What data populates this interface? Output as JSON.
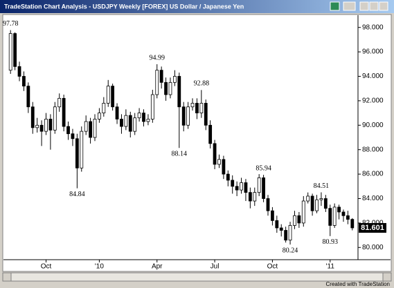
{
  "window": {
    "title": "TradeStation Chart Analysis - USDJPY Weekly [FOREX] US Dollar / Japanese Yen",
    "footer": "Created with TradeStation"
  },
  "chart_data": {
    "type": "candlestick",
    "categories": [
      null,
      null,
      null,
      null,
      null,
      null,
      null,
      null,
      "Oct",
      null,
      null,
      null,
      null,
      null,
      null,
      null,
      null,
      null,
      null,
      null,
      "'10",
      null,
      null,
      null,
      null,
      null,
      null,
      null,
      null,
      null,
      null,
      null,
      null,
      "Apr",
      null,
      null,
      null,
      null,
      null,
      null,
      null,
      null,
      null,
      null,
      null,
      null,
      "Jul",
      null,
      null,
      null,
      null,
      null,
      null,
      null,
      null,
      null,
      null,
      null,
      null,
      "Oct",
      null,
      null,
      null,
      null,
      null,
      null,
      null,
      null,
      null,
      null,
      null,
      null,
      "'11",
      null,
      null,
      null,
      null,
      null
    ],
    "series": [
      {
        "name": "USDJPY",
        "open": [
          94.5,
          97.5,
          94.8,
          94.0,
          93.2,
          91.5,
          89.8,
          90.0,
          89.5,
          90.5,
          89.6,
          91.5,
          92.2,
          89.9,
          89.3,
          88.9,
          86.5,
          89.5,
          90.3,
          89.0,
          90.5,
          91.0,
          91.8,
          93.2,
          91.5,
          90.5,
          89.9,
          90.8,
          89.5,
          90.6,
          91.0,
          90.3,
          90.5,
          92.5,
          94.5,
          93.5,
          92.5,
          93.5,
          94.0,
          91.5,
          90.0,
          91.5,
          91.8,
          91.0,
          91.8,
          90.0,
          88.5,
          86.8,
          87.2,
          86.0,
          85.5,
          85.0,
          84.7,
          85.3,
          84.5,
          83.8,
          84.5,
          85.7,
          84.0,
          83.0,
          82.2,
          81.6,
          81.4,
          80.6,
          81.8,
          82.6,
          82.0,
          83.8,
          84.2,
          83.0,
          83.9,
          84.0,
          83.2,
          81.8,
          83.3,
          82.9,
          82.6,
          82.3
        ],
        "high": [
          97.78,
          97.6,
          95.2,
          94.4,
          93.5,
          91.9,
          90.6,
          90.4,
          91.0,
          90.9,
          91.9,
          92.6,
          92.5,
          90.3,
          89.7,
          89.3,
          89.9,
          90.8,
          90.6,
          90.9,
          91.4,
          92.3,
          93.7,
          93.4,
          91.8,
          90.9,
          91.3,
          91.1,
          91.0,
          91.4,
          91.3,
          90.9,
          92.9,
          94.99,
          94.8,
          93.9,
          93.9,
          94.5,
          94.3,
          91.9,
          91.9,
          92.2,
          92.2,
          92.88,
          92.1,
          90.4,
          88.8,
          87.6,
          87.5,
          86.3,
          85.9,
          85.4,
          85.7,
          85.6,
          84.9,
          84.9,
          86.0,
          85.94,
          84.3,
          83.3,
          82.6,
          81.9,
          81.7,
          82.1,
          83.0,
          82.9,
          84.2,
          84.5,
          84.4,
          84.3,
          84.51,
          84.3,
          83.5,
          83.6,
          83.5,
          83.1,
          83.0,
          82.4
        ],
        "low": [
          94.2,
          94.5,
          93.6,
          92.8,
          91.0,
          89.3,
          89.4,
          88.3,
          89.2,
          88.0,
          89.3,
          91.1,
          89.5,
          88.8,
          88.3,
          84.84,
          86.2,
          89.2,
          88.5,
          88.7,
          90.2,
          90.7,
          91.5,
          91.2,
          90.1,
          89.3,
          89.6,
          89.0,
          89.2,
          90.3,
          89.9,
          90.0,
          90.2,
          92.2,
          93.0,
          92.0,
          92.2,
          93.2,
          88.14,
          89.5,
          89.7,
          91.2,
          90.5,
          90.6,
          89.6,
          88.1,
          86.4,
          86.5,
          85.6,
          85.0,
          84.4,
          84.2,
          84.4,
          83.8,
          83.2,
          83.4,
          84.2,
          83.7,
          82.6,
          81.8,
          81.2,
          80.9,
          80.4,
          80.24,
          81.5,
          81.6,
          81.7,
          83.6,
          82.6,
          82.8,
          83.4,
          82.9,
          80.93,
          81.6,
          82.3,
          82.1,
          81.9,
          81.4
        ],
        "close": [
          97.5,
          94.8,
          94.0,
          93.2,
          91.5,
          89.8,
          90.0,
          89.5,
          90.5,
          89.6,
          91.5,
          92.2,
          89.9,
          89.3,
          88.9,
          86.5,
          89.5,
          90.3,
          89.0,
          90.5,
          91.0,
          91.8,
          93.2,
          91.5,
          90.5,
          89.9,
          90.8,
          89.5,
          90.6,
          91.0,
          90.3,
          90.5,
          92.5,
          94.5,
          93.5,
          92.5,
          93.5,
          94.0,
          91.5,
          90.0,
          91.5,
          91.8,
          91.0,
          91.8,
          90.0,
          88.5,
          86.8,
          87.2,
          86.0,
          85.5,
          85.0,
          84.7,
          85.3,
          84.5,
          83.8,
          84.5,
          85.7,
          84.0,
          83.0,
          82.2,
          81.6,
          81.4,
          80.6,
          81.8,
          82.6,
          82.0,
          83.8,
          84.2,
          83.0,
          83.9,
          84.0,
          83.2,
          81.8,
          83.3,
          82.9,
          82.6,
          82.3,
          81.601
        ]
      }
    ],
    "ylim": [
      79,
      99
    ],
    "yticks": [
      {
        "value": 80,
        "label": "80.000"
      },
      {
        "value": 82,
        "label": "82.000"
      },
      {
        "value": 84,
        "label": "84.000"
      },
      {
        "value": 86,
        "label": "86.000"
      },
      {
        "value": 88,
        "label": "88.000"
      },
      {
        "value": 90,
        "label": "90.000"
      },
      {
        "value": 92,
        "label": "92.000"
      },
      {
        "value": 94,
        "label": "94.000"
      },
      {
        "value": 96,
        "label": "96.000"
      },
      {
        "value": 98,
        "label": "98.000"
      }
    ],
    "grid": false
  }
}
